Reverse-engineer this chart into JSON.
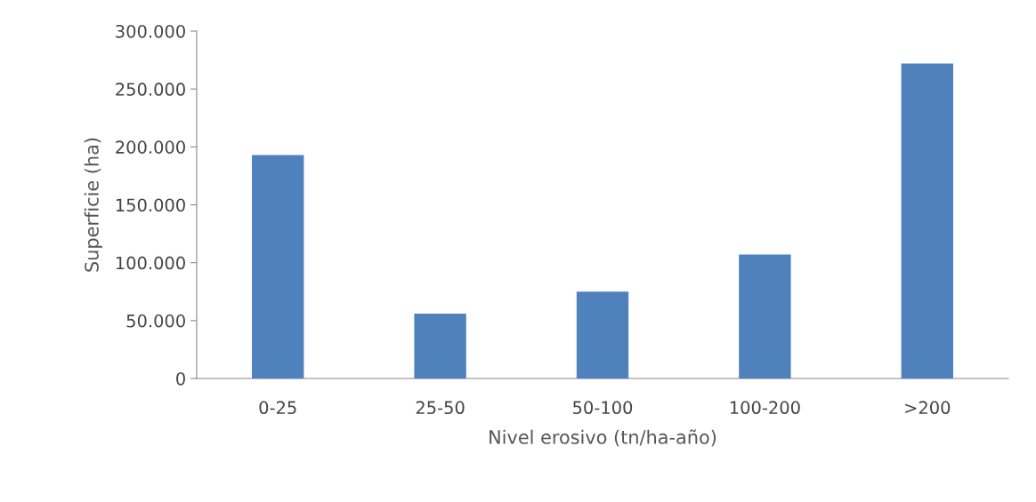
{
  "chart_data": {
    "type": "bar",
    "xlabel": "Nivel erosivo (tn/ha-año)",
    "ylabel": "Superficie (ha)",
    "categories": [
      "0-25",
      "25-50",
      "50-100",
      "100-200",
      ">200"
    ],
    "values": [
      193000,
      56000,
      75000,
      107000,
      272000
    ],
    "color": "#4f81bd",
    "ylim": [
      0,
      300000
    ],
    "yticks": [
      0,
      {
        "value": 50000,
        "label": "50.000"
      },
      {
        "value": 100000,
        "label": "100.000"
      },
      {
        "value": 150000,
        "label": "150.000"
      },
      {
        "value": 200000,
        "label": "200.000"
      },
      {
        "value": 250000,
        "label": "250.000"
      },
      {
        "value": 300000,
        "label": "300.000"
      }
    ],
    "grid": false,
    "legend": false
  }
}
